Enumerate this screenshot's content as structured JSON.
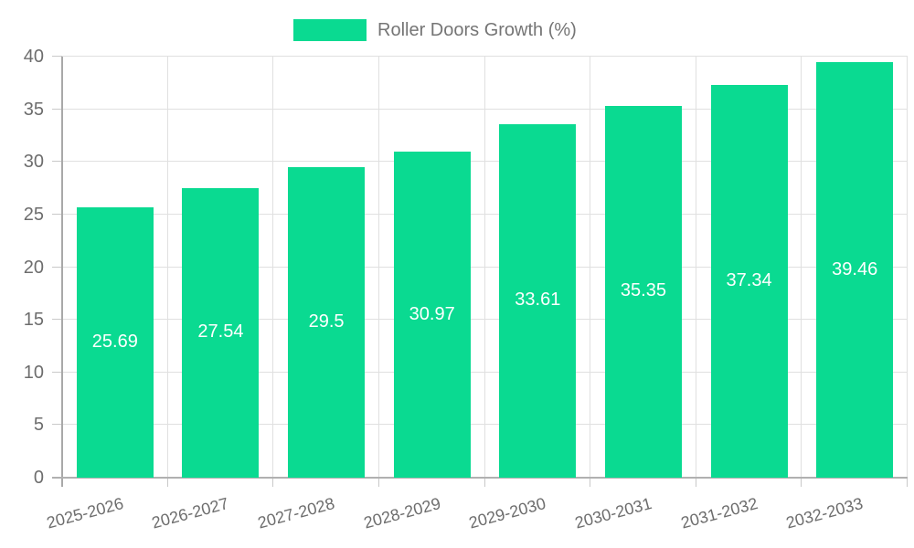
{
  "chart_data": {
    "type": "bar",
    "title": "Roller Doors Growth (%)",
    "legend": {
      "position": "top-center",
      "label": "Roller Doors Growth (%)"
    },
    "categories": [
      "2025-2026",
      "2026-2027",
      "2027-2028",
      "2028-2029",
      "2029-2030",
      "2030-2031",
      "2031-2032",
      "2032-2033"
    ],
    "values": [
      25.69,
      27.54,
      29.5,
      30.97,
      33.61,
      35.35,
      37.34,
      39.46
    ],
    "value_labels": [
      "25.69",
      "27.54",
      "29.5",
      "30.97",
      "33.61",
      "35.35",
      "37.34",
      "39.46"
    ],
    "xlabel": "",
    "ylabel": "",
    "ylim": [
      0,
      40
    ],
    "yticks": [
      0,
      5,
      10,
      15,
      20,
      25,
      30,
      35,
      40
    ],
    "grid": "horizontal and vertical gridlines on",
    "x_label_rotation_deg": -15,
    "colors": {
      "bar": "#0ada91",
      "value_label": "#ffffff",
      "axis_text": "#6d6d6d",
      "legend_text": "#757575",
      "gridline": "#e0e0e0",
      "y_axis_line": "#a9a9a9",
      "x_axis_line": "#b0b0b0",
      "tick": "#c9c9c9",
      "background": "#ffffff"
    }
  }
}
